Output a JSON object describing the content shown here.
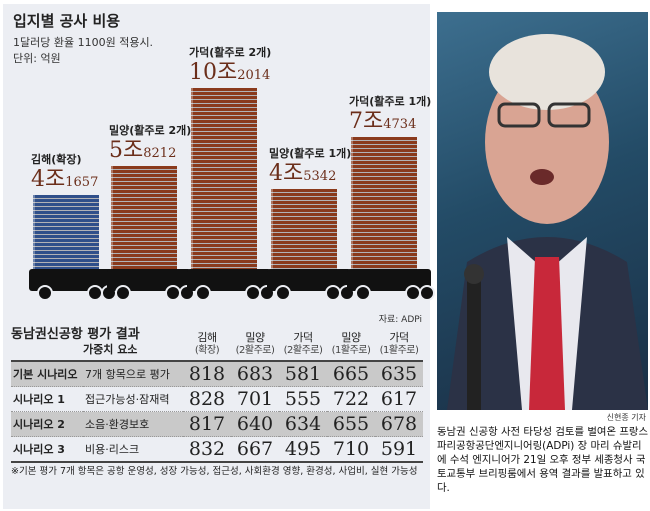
{
  "infographic": {
    "title": "입지별 공사 비용",
    "subtitle1": "1달러당 환율 1100원 적용시.",
    "subtitle2": "단위: 억원",
    "source": "자료: ADPi"
  },
  "chart_data": {
    "type": "bar",
    "title": "입지별 공사 비용",
    "unit": "억원",
    "categories": [
      "김해(확장)",
      "밀양(활주로 2개)",
      "가덕(활주로 2개)",
      "밀양(활주로 1개)",
      "가덕(활주로 1개)"
    ],
    "values": [
      41657,
      58212,
      102014,
      45342,
      74734
    ],
    "labels": [
      {
        "big": "4조",
        "small": "1657"
      },
      {
        "big": "5조",
        "small": "8212"
      },
      {
        "big": "10조",
        "small": "2014"
      },
      {
        "big": "4조",
        "small": "5342"
      },
      {
        "big": "7조",
        "small": "4734"
      }
    ],
    "colors": [
      "#2f4f8a",
      "#8a3a1c",
      "#8a3a1c",
      "#8a3a1c",
      "#8a3a1c"
    ]
  },
  "table": {
    "title": "동남권신공항 평가 결과",
    "weight_label": "가중치 요소",
    "columns": [
      {
        "name": "김해",
        "sub": "(확장)"
      },
      {
        "name": "밀양",
        "sub": "(2활주로)"
      },
      {
        "name": "가덕",
        "sub": "(2활주로)"
      },
      {
        "name": "밀양",
        "sub": "(1활주로)"
      },
      {
        "name": "가덕",
        "sub": "(1활주로)"
      }
    ],
    "rows": [
      {
        "scenario": "기본 시나리오",
        "factor": "7개 항목으로 평가",
        "values": [
          "818",
          "683",
          "581",
          "665",
          "635"
        ]
      },
      {
        "scenario": "시나리오 1",
        "factor": "접근가능성·잠재력",
        "values": [
          "828",
          "701",
          "555",
          "722",
          "617"
        ]
      },
      {
        "scenario": "시나리오 2",
        "factor": "소음·환경보호",
        "values": [
          "817",
          "640",
          "634",
          "655",
          "678"
        ]
      },
      {
        "scenario": "시나리오 3",
        "factor": "비용·리스크",
        "values": [
          "832",
          "667",
          "495",
          "710",
          "591"
        ]
      }
    ],
    "note": "※기본 평가 7개 항목은 공항 운영성, 성장 가능성, 접근성, 사회환경 영향, 환경성, 사업비, 실현 가능성"
  },
  "photo": {
    "credit": "신현종 기자",
    "caption": "동남권 신공항 사전 타당성 검토를 벌여온 프랑스 파리공항공단엔지니어링(ADPi) 장 마리 슈발리에 수석 엔지니어가 21일 오후 정부 세종청사 국토교통부 브리핑룸에서 용역 결과를 발표하고 있다."
  }
}
